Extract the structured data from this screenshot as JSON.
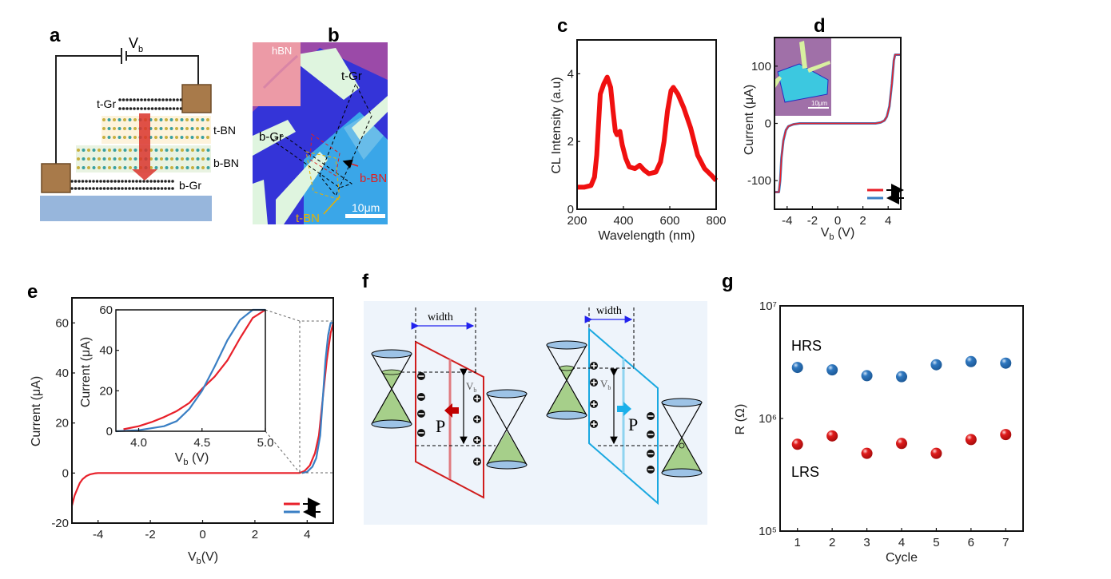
{
  "panels": {
    "a": {
      "letter": "a",
      "battery_label_main": "V",
      "battery_label_sub": "b",
      "t_gr": "t-Gr",
      "t_bn": "t-BN",
      "b_bn": "b-BN",
      "b_gr": "b-Gr"
    },
    "b": {
      "letter": "b",
      "hbn": "hBN",
      "t_gr": "t-Gr",
      "b_gr": "b-Gr",
      "b_bn": "b-BN",
      "t_bn": "t-BN",
      "scale": "10μm"
    },
    "c": {
      "letter": "c"
    },
    "d": {
      "letter": "d",
      "inset_scale": "10μm"
    },
    "e": {
      "letter": "e"
    },
    "f": {
      "letter": "f",
      "width_left": "width",
      "width_right": "width",
      "vb_main": "V",
      "vb_sub": "b",
      "p_left": "P",
      "p_right": "P"
    },
    "g": {
      "letter": "g",
      "hrs": "HRS",
      "lrs": "LRS"
    }
  },
  "colors": {
    "forward": "#e8202a",
    "backward": "#3a7fc4",
    "cl": "#f01010",
    "hrs": "#2f78c0",
    "lrs": "#e01c1c",
    "f_bg": "#eef4fb",
    "substrate": "#97b6dc"
  },
  "chart_data": [
    {
      "id": "c",
      "type": "line",
      "xlabel": "Wavelength (nm)",
      "ylabel": "CL Intensity (a.u)",
      "xlim": [
        200,
        800
      ],
      "ylim": [
        0,
        5
      ],
      "xticks": [
        200,
        400,
        600,
        800
      ],
      "yticks": [
        0,
        2,
        4
      ],
      "grid": false,
      "series": [
        {
          "x": [
            200,
            230,
            260,
            275,
            285,
            300,
            315,
            330,
            345,
            355,
            365,
            372,
            385,
            395,
            410,
            425,
            450,
            470,
            490,
            510,
            540,
            560,
            575,
            590,
            605,
            615,
            635,
            660,
            690,
            720,
            750,
            780,
            800
          ],
          "y": [
            0.65,
            0.65,
            0.7,
            0.95,
            1.6,
            3.4,
            3.7,
            3.9,
            3.6,
            2.9,
            2.3,
            2.2,
            2.3,
            1.9,
            1.5,
            1.25,
            1.2,
            1.3,
            1.15,
            1.05,
            1.1,
            1.4,
            2.0,
            2.9,
            3.5,
            3.6,
            3.4,
            3.0,
            2.4,
            1.6,
            1.2,
            1.0,
            0.85
          ]
        }
      ]
    },
    {
      "id": "d",
      "type": "line",
      "xlabel_main": "V",
      "xlabel_sub": "b",
      "xlabel_unit": " (V)",
      "ylabel": "Current (μA)",
      "xlim": [
        -5,
        5
      ],
      "ylim": [
        -150,
        150
      ],
      "xticks": [
        -4,
        -2,
        0,
        2,
        4
      ],
      "yticks": [
        -100,
        0,
        100
      ],
      "grid": false,
      "legend": "bottom-right",
      "series": [
        {
          "direction": "forward",
          "x": [
            -5,
            -4.65,
            -4.55,
            -4.45,
            -4.3,
            -4.1,
            -3.9,
            -3.5,
            -3,
            0,
            3,
            3.4,
            3.7,
            3.9,
            4.1,
            4.3,
            4.45,
            4.55,
            5
          ],
          "y": [
            -120,
            -120,
            -100,
            -60,
            -30,
            -12,
            -5,
            -1.5,
            0,
            0,
            0,
            1.5,
            5,
            12,
            30,
            70,
            110,
            120,
            120
          ]
        },
        {
          "direction": "backward",
          "x": [
            -5,
            -4.65,
            -4.55,
            -4.45,
            -4.3,
            -4.1,
            -3.9,
            -3.5,
            -3,
            0,
            3,
            3.4,
            3.7,
            3.9,
            4.1,
            4.3,
            4.45,
            4.55,
            5
          ],
          "y": [
            -120,
            -120,
            -100,
            -60,
            -30,
            -12,
            -5,
            -1.5,
            0,
            0,
            0,
            1.5,
            5,
            12,
            30,
            70,
            110,
            120,
            120
          ]
        }
      ]
    },
    {
      "id": "e",
      "type": "line",
      "xlabel_main": "V",
      "xlabel_sub": "b",
      "xlabel_unit": "(V)",
      "ylabel": "Current (μA)",
      "xlim": [
        -5,
        5
      ],
      "ylim": [
        -20,
        70
      ],
      "xticks": [
        -4,
        -2,
        0,
        2,
        4
      ],
      "yticks": [
        -20,
        0,
        20,
        40,
        60
      ],
      "grid": false,
      "legend": "bottom-right",
      "series": [
        {
          "direction": "forward",
          "x": [
            -5,
            -4.9,
            -4.8,
            -4.7,
            -4.6,
            -4.45,
            -4.3,
            -4.1,
            -4,
            0,
            3.7,
            3.9,
            4.1,
            4.3,
            4.45,
            4.6,
            4.75,
            4.9,
            5
          ],
          "y": [
            -13,
            -9,
            -6.5,
            -4,
            -2.5,
            -1.2,
            -0.5,
            -0.1,
            0,
            0,
            0,
            0.8,
            3,
            8,
            15,
            30,
            45,
            56,
            60
          ]
        },
        {
          "direction": "backward",
          "x": [
            3.8,
            4.0,
            4.2,
            4.35,
            4.5,
            4.6,
            4.7,
            4.8,
            4.9,
            5
          ],
          "y": [
            0,
            0.5,
            2.5,
            6,
            15,
            30,
            45,
            55,
            60,
            60
          ]
        }
      ]
    },
    {
      "id": "e-inset",
      "type": "line",
      "xlabel_main": "V",
      "xlabel_sub": "b",
      "xlabel_unit": " (V)",
      "ylabel": "Current (μA)",
      "xlim": [
        3.82,
        5.0
      ],
      "ylim": [
        0,
        60
      ],
      "xticks": [
        4.0,
        4.5,
        5.0
      ],
      "yticks": [
        0,
        20,
        40,
        60
      ],
      "grid": false,
      "series": [
        {
          "direction": "forward",
          "x": [
            3.88,
            4.0,
            4.1,
            4.2,
            4.3,
            4.4,
            4.5,
            4.6,
            4.7,
            4.8,
            4.9,
            5.0
          ],
          "y": [
            1,
            2.5,
            4.5,
            7,
            10,
            14,
            21,
            27,
            35,
            46,
            56,
            60
          ]
        },
        {
          "direction": "backward",
          "x": [
            3.82,
            4.0,
            4.1,
            4.2,
            4.3,
            4.4,
            4.5,
            4.6,
            4.7,
            4.8,
            4.9,
            5.0
          ],
          "y": [
            0,
            0.5,
            1.5,
            2.5,
            5,
            11,
            20,
            32,
            45,
            55,
            60,
            60
          ]
        }
      ]
    },
    {
      "id": "g",
      "type": "scatter",
      "xlabel": "Cycle",
      "ylabel": "R (Ω)",
      "xlim": [
        0.5,
        7.5
      ],
      "ylim": [
        100000,
        10000000
      ],
      "yscale": "log",
      "xticks": [
        1,
        2,
        3,
        4,
        5,
        6,
        7
      ],
      "yticks": [
        100000,
        1000000,
        10000000
      ],
      "ytick_labels": [
        "10⁵",
        "10⁶",
        "10⁷"
      ],
      "grid": false,
      "series": [
        {
          "name": "HRS",
          "x": [
            1,
            2,
            3,
            4,
            5,
            6,
            7
          ],
          "y": [
            2840000,
            2700000,
            2400000,
            2350000,
            3000000,
            3200000,
            3100000
          ]
        },
        {
          "name": "LRS",
          "x": [
            1,
            2,
            3,
            4,
            5,
            6,
            7
          ],
          "y": [
            590000,
            700000,
            490000,
            600000,
            490000,
            650000,
            720000
          ]
        }
      ]
    }
  ]
}
